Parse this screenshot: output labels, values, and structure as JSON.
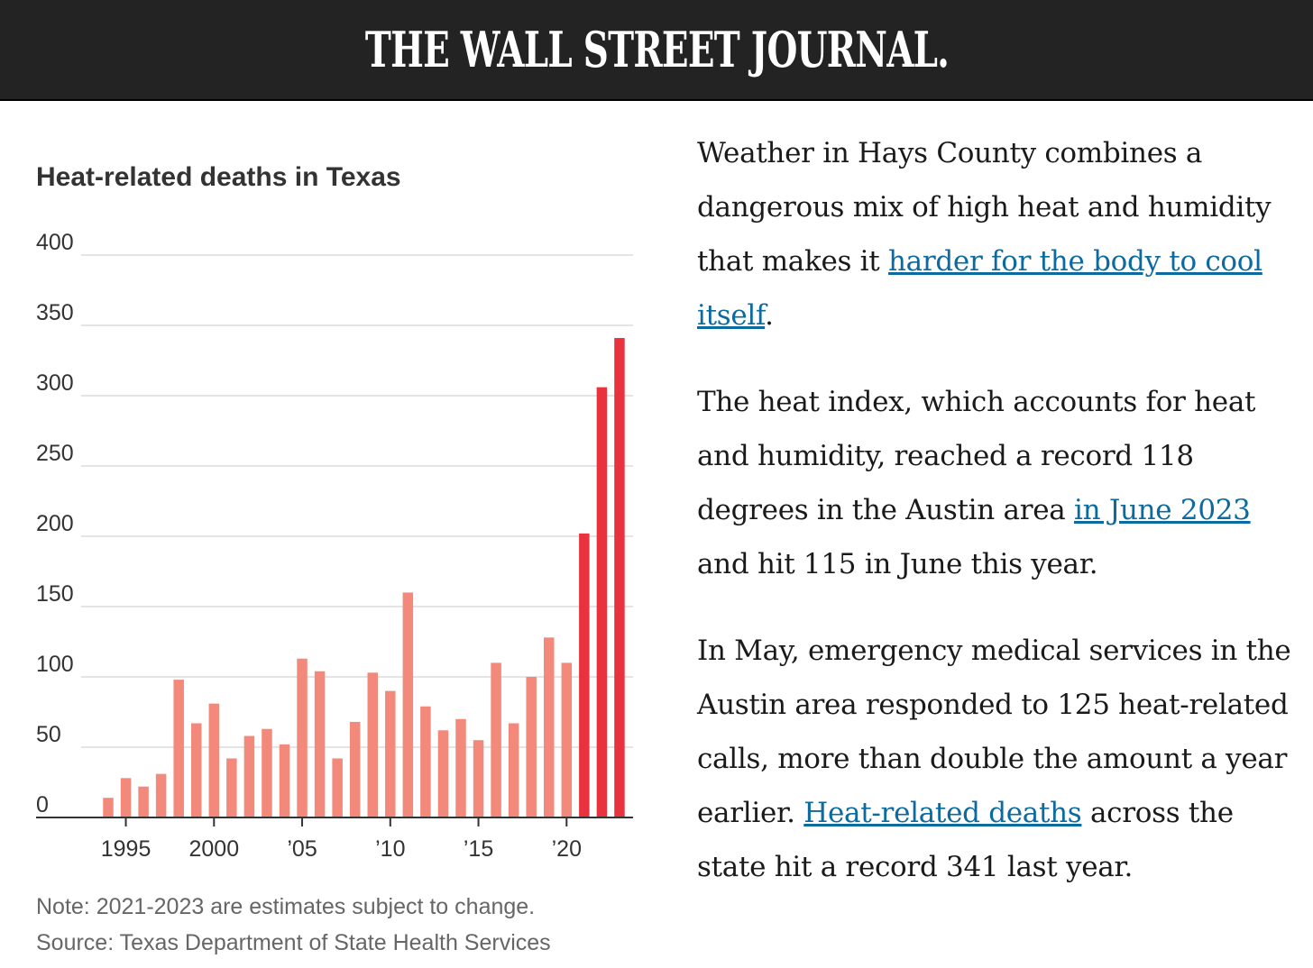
{
  "header": {
    "title": "THE WALL STREET JOURNAL."
  },
  "chart_data": {
    "type": "bar",
    "title": "Heat-related deaths in Texas",
    "x": [
      1994,
      1995,
      1996,
      1997,
      1998,
      1999,
      2000,
      2001,
      2002,
      2003,
      2004,
      2005,
      2006,
      2007,
      2008,
      2009,
      2010,
      2011,
      2012,
      2013,
      2014,
      2015,
      2016,
      2017,
      2018,
      2019,
      2020,
      2021,
      2022,
      2023
    ],
    "values": [
      14,
      28,
      22,
      31,
      98,
      67,
      81,
      42,
      58,
      63,
      52,
      113,
      104,
      42,
      68,
      103,
      90,
      160,
      79,
      62,
      70,
      55,
      110,
      67,
      100,
      128,
      110,
      202,
      306,
      341
    ],
    "estimated_years": [
      2021,
      2022,
      2023
    ],
    "ylim": [
      0,
      400
    ],
    "yticks": [
      0,
      50,
      100,
      150,
      200,
      250,
      300,
      350,
      400
    ],
    "xtick_values": [
      1995,
      2000,
      2005,
      2010,
      2015,
      2020
    ],
    "xtick_labels": [
      "1995",
      "2000",
      "’05",
      "’10",
      "’15",
      "’20"
    ],
    "colors": {
      "actual": "#f2897b",
      "estimate": "#e8323e"
    },
    "grid": true
  },
  "notes": {
    "note": "Note: 2021-2023 are estimates subject to change.",
    "source": "Source: Texas Department of State Health Services"
  },
  "article": {
    "p1_a": "Weather in Hays County combines a dangerous mix of high heat and humidity that makes it ",
    "p1_link": "harder for the body to cool itself",
    "p1_b": ".",
    "p2_a": "The heat index, which accounts for heat and humidity, reached a record 118 degrees in the Austin area ",
    "p2_link": "in June 2023",
    "p2_b": " and hit 115 in June this year.",
    "p3_a": "In May, emergency medical services in the Austin area responded to 125 heat-related calls, more than double the amount a year earlier. ",
    "p3_link": "Heat-related deaths",
    "p3_b": " across the state hit a record 341 last year."
  }
}
